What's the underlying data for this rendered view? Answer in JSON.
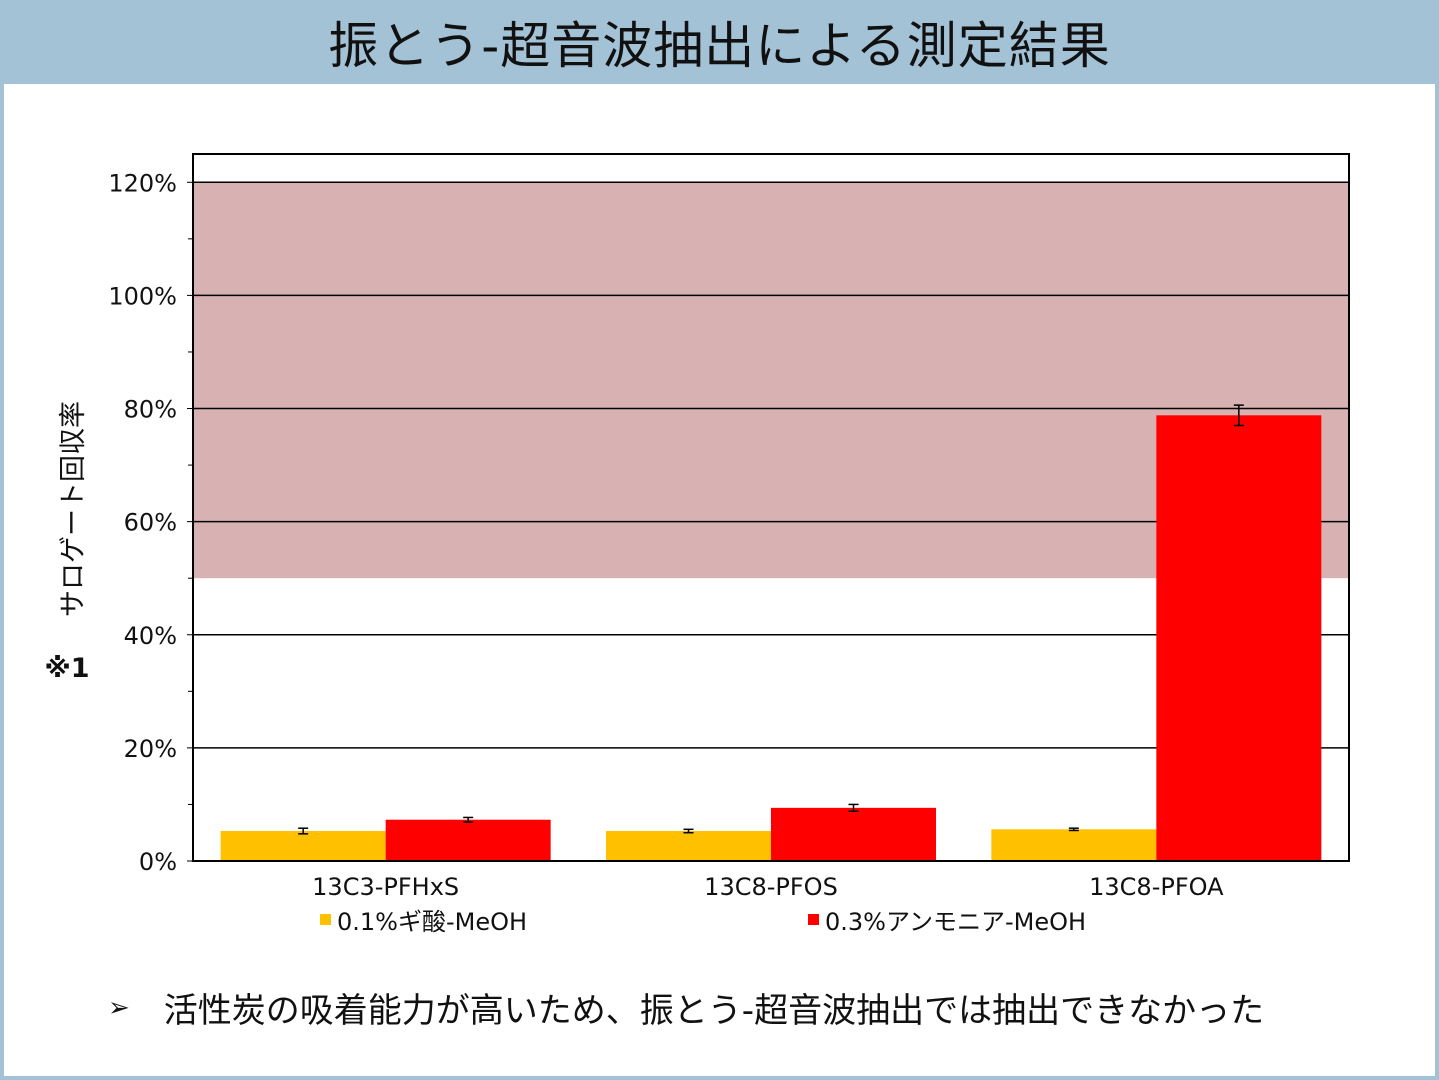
{
  "slide": {
    "title": "振とう-超音波抽出による測定結果",
    "bullet_marker": "➢",
    "bullet_text": "活性炭の吸着能力が高いため、振とう-超音波抽出では抽出できなかった"
  },
  "colors": {
    "header_background": "#a4c2d6",
    "acceptance_band": "#d8b2b3",
    "series_formic": "#ffc000",
    "series_ammonia": "#ff0000"
  },
  "chart_data": {
    "type": "bar",
    "title": "",
    "ylabel": "サロゲート回収率",
    "ylabel_note": "※1",
    "xlabel": "",
    "categories": [
      "13C3-PFHxS",
      "13C8-PFOS",
      "13C8-PFOA"
    ],
    "ylim": [
      0,
      125
    ],
    "yticks": [
      0,
      20,
      40,
      60,
      80,
      100,
      120
    ],
    "ytick_labels": [
      "0%",
      "20%",
      "40%",
      "60%",
      "80%",
      "100%",
      "120%"
    ],
    "acceptance_range": [
      50,
      120
    ],
    "grid": true,
    "legend_position": "bottom",
    "series": [
      {
        "name": "0.1%ギ酸-MeOH",
        "color": "#ffc000",
        "values": [
          5.3,
          5.3,
          5.6
        ],
        "errors": [
          0.5,
          0.3,
          0.2
        ]
      },
      {
        "name": "0.3%アンモニア-MeOH",
        "color": "#ff0000",
        "values": [
          7.3,
          9.4,
          78.8
        ],
        "errors": [
          0.4,
          0.6,
          1.8
        ]
      }
    ]
  }
}
